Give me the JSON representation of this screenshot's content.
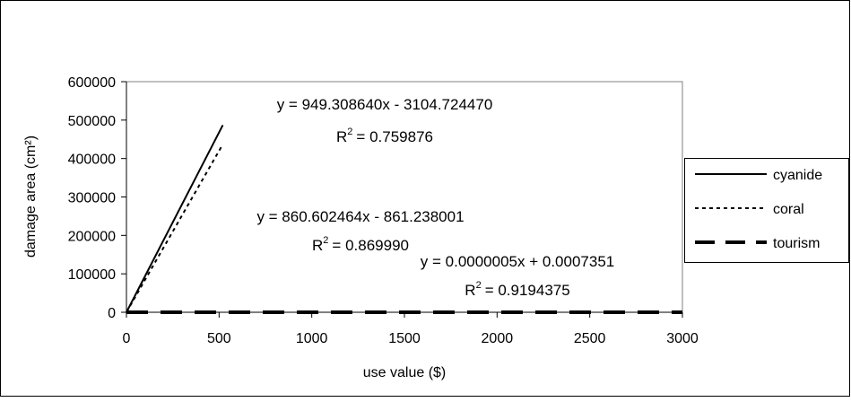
{
  "chart_data": {
    "type": "line",
    "title": "",
    "xlabel": "use value ($)",
    "ylabel": "damage area (cm²)",
    "xlim": [
      0,
      3000
    ],
    "ylim": [
      0,
      600000
    ],
    "x_ticks": [
      "0",
      "500",
      "1000",
      "1500",
      "2000",
      "2500",
      "3000"
    ],
    "y_ticks": [
      "0",
      "100000",
      "200000",
      "300000",
      "400000",
      "500000",
      "600000"
    ],
    "grid": false,
    "legend_position": "right",
    "series": [
      {
        "name": "cyanide",
        "style": "solid",
        "x": [
          0,
          520
        ],
        "y": [
          0,
          487000
        ]
      },
      {
        "name": "coral",
        "style": "dotted",
        "x": [
          0,
          520
        ],
        "y": [
          0,
          437000
        ]
      },
      {
        "name": "tourism",
        "style": "dashed",
        "x": [
          0,
          3000
        ],
        "y": [
          0,
          0
        ]
      }
    ],
    "annotations": [
      {
        "equation": "y = 949.308640x - 3104.724470",
        "r2_value": "= 0.759876"
      },
      {
        "equation": "y = 860.602464x - 861.238001",
        "r2_value": "= 0.869990"
      },
      {
        "equation": "y = 0.0000005x + 0.0007351",
        "r2_value": "= 0.9194375"
      }
    ],
    "r2_label": "R",
    "r2_superscript": "2"
  }
}
